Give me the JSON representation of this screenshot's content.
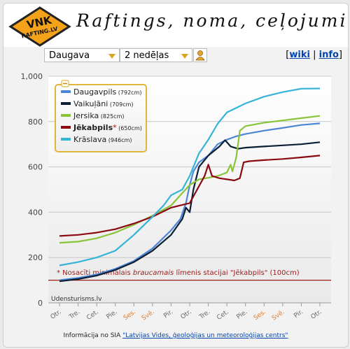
{
  "header": {
    "logo_line1": "VNK",
    "logo_line2": "RAFTING.LV",
    "title": "Raftings, noma, ceļojumi"
  },
  "toolbar": {
    "river_select": "Daugava",
    "period_select": "2 nedēļas",
    "link_open": "[",
    "link_wiki": "wiki",
    "link_sep": "|",
    "link_info": "info",
    "link_close": "]"
  },
  "footer": {
    "text": "Informācija no SIA ",
    "link": "\"Latvijas Vides, ģeoloģijas un meteoroloģijas centrs\""
  },
  "colors": {
    "daugavpils": "#4d86d6",
    "vaikulani": "#0c1f33",
    "jersika": "#8ac43a",
    "jekabpils": "#8b0a12",
    "kraslava": "#35b4d6",
    "threshold": "#9c1b1b",
    "weekend_tick": "#e07a2a"
  },
  "chart_data": {
    "type": "line",
    "ylim": [
      0,
      1000
    ],
    "yticks": [
      "0",
      "200",
      "400",
      "600",
      "800",
      "1,000"
    ],
    "xticks": [
      {
        "label": "Otr.",
        "weekend": false
      },
      {
        "label": "Tre.",
        "weekend": false
      },
      {
        "label": "Cet.",
        "weekend": false
      },
      {
        "label": "Pie.",
        "weekend": false
      },
      {
        "label": "Ses.",
        "weekend": true
      },
      {
        "label": "Svē.",
        "weekend": true
      },
      {
        "label": "Pir.",
        "weekend": false
      },
      {
        "label": "Otr.",
        "weekend": false
      },
      {
        "label": "Tre.",
        "weekend": false
      },
      {
        "label": "Cet.",
        "weekend": false
      },
      {
        "label": "Pie.",
        "weekend": false
      },
      {
        "label": "Ses.",
        "weekend": true
      },
      {
        "label": "Svē.",
        "weekend": true
      },
      {
        "label": "Pir.",
        "weekend": false
      },
      {
        "label": "Otr.",
        "weekend": false
      }
    ],
    "grid": true,
    "legend_position": "top-left",
    "watermark": "Udensturisms.lv",
    "threshold": {
      "value": 100,
      "note_prefix": "* Nosacīti minimālais ",
      "note_em": "braucamais",
      "note_suffix": " līmenis stacijai \"Jēkabpils\" (100cm)"
    },
    "series": [
      {
        "key": "daugavpils",
        "name": "Daugavpils",
        "current": "(792cm)",
        "star": "",
        "values": [
          [
            0,
            100
          ],
          [
            1,
            110
          ],
          [
            2,
            125
          ],
          [
            3,
            150
          ],
          [
            4,
            185
          ],
          [
            5,
            240
          ],
          [
            6,
            320
          ],
          [
            6.5,
            370
          ],
          [
            6.8,
            440
          ],
          [
            7,
            520
          ],
          [
            7.2,
            580
          ],
          [
            7.5,
            620
          ],
          [
            8,
            650
          ],
          [
            8.5,
            700
          ],
          [
            9,
            720
          ],
          [
            9.5,
            735
          ],
          [
            10,
            745
          ],
          [
            11,
            760
          ],
          [
            12,
            772
          ],
          [
            13,
            785
          ],
          [
            14,
            792
          ]
        ]
      },
      {
        "key": "vaikulani",
        "name": "Vaikuļāni",
        "current": "(709cm)",
        "star": "",
        "values": [
          [
            0,
            95
          ],
          [
            1,
            105
          ],
          [
            2,
            120
          ],
          [
            3,
            145
          ],
          [
            4,
            180
          ],
          [
            5,
            230
          ],
          [
            6,
            300
          ],
          [
            6.6,
            370
          ],
          [
            6.8,
            420
          ],
          [
            7,
            400
          ],
          [
            7.2,
            500
          ],
          [
            7.5,
            600
          ],
          [
            8,
            650
          ],
          [
            8.6,
            690
          ],
          [
            8.9,
            718
          ],
          [
            9.2,
            690
          ],
          [
            9.6,
            680
          ],
          [
            10,
            685
          ],
          [
            11,
            690
          ],
          [
            12,
            695
          ],
          [
            13,
            700
          ],
          [
            14,
            709
          ]
        ]
      },
      {
        "key": "jersika",
        "name": "Jersika",
        "current": "(825cm)",
        "star": "",
        "values": [
          [
            0,
            265
          ],
          [
            1,
            270
          ],
          [
            2,
            285
          ],
          [
            3,
            310
          ],
          [
            4,
            345
          ],
          [
            5,
            385
          ],
          [
            6,
            430
          ],
          [
            7,
            520
          ],
          [
            7.5,
            545
          ],
          [
            8,
            552
          ],
          [
            8.5,
            560
          ],
          [
            9,
            575
          ],
          [
            9.2,
            610
          ],
          [
            9.3,
            580
          ],
          [
            9.5,
            640
          ],
          [
            9.7,
            760
          ],
          [
            10,
            780
          ],
          [
            11,
            795
          ],
          [
            12,
            805
          ],
          [
            13,
            815
          ],
          [
            14,
            825
          ]
        ]
      },
      {
        "key": "jekabpils",
        "name": "Jēkabpils",
        "current": "(650cm)",
        "star": "*",
        "values": [
          [
            0,
            295
          ],
          [
            1,
            300
          ],
          [
            2,
            310
          ],
          [
            3,
            325
          ],
          [
            4,
            350
          ],
          [
            5,
            380
          ],
          [
            6,
            420
          ],
          [
            7,
            440
          ],
          [
            7.8,
            560
          ],
          [
            8,
            610
          ],
          [
            8.2,
            560
          ],
          [
            8.6,
            550
          ],
          [
            9,
            545
          ],
          [
            9.4,
            540
          ],
          [
            9.7,
            550
          ],
          [
            9.9,
            620
          ],
          [
            10.2,
            625
          ],
          [
            11,
            630
          ],
          [
            12,
            635
          ],
          [
            13,
            642
          ],
          [
            14,
            650
          ]
        ]
      },
      {
        "key": "kraslava",
        "name": "Krāslava",
        "current": "(946cm)",
        "star": "",
        "values": [
          [
            0,
            165
          ],
          [
            1,
            180
          ],
          [
            2,
            200
          ],
          [
            3,
            230
          ],
          [
            4,
            300
          ],
          [
            5,
            380
          ],
          [
            5.6,
            430
          ],
          [
            6,
            475
          ],
          [
            6.6,
            500
          ],
          [
            7,
            560
          ],
          [
            7.5,
            660
          ],
          [
            8,
            720
          ],
          [
            8.5,
            790
          ],
          [
            9,
            840
          ],
          [
            10,
            880
          ],
          [
            11,
            910
          ],
          [
            12,
            930
          ],
          [
            13,
            945
          ],
          [
            14,
            946
          ]
        ]
      }
    ]
  }
}
